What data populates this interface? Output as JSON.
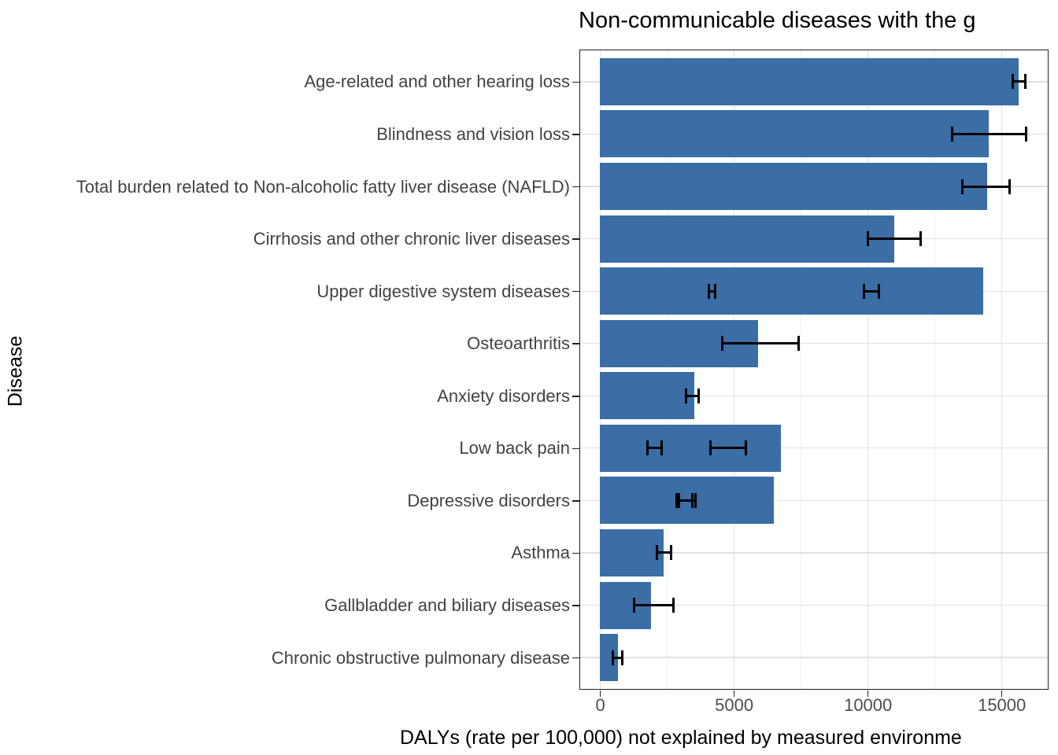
{
  "title": "Non-communicable diseases with the g",
  "axes": {
    "x_label": "DALYs (rate per 100,000) not explained by measured environme",
    "y_label": "Disease"
  },
  "colors": {
    "bar_fill": "#3A6EA5",
    "panel_border": "#1F1F1F",
    "grid_major": "#E0E0E0",
    "grid_minor": "#F0F0F0",
    "axis_text": "#424242",
    "error_bar": "#000000",
    "background": "#FFFFFF"
  },
  "chart_data": {
    "type": "bar",
    "orientation": "horizontal",
    "title": "Non-communicable diseases with the g",
    "xlabel": "DALYs (rate per 100,000) not explained by measured environme",
    "ylabel": "Disease",
    "xlim": [
      -740,
      16730
    ],
    "x_major_ticks": [
      0,
      5000,
      10000,
      15000
    ],
    "x_tick_labels": [
      "0",
      "5000",
      "10000",
      "15000"
    ],
    "x_minor_gridlines": [
      2500,
      7500,
      12500
    ],
    "grid": true,
    "legend": false,
    "bar_width_fraction": 0.9,
    "rows": [
      {
        "label": "Age-related and other hearing loss",
        "value": 15650,
        "errors": [
          [
            15410,
            15900
          ]
        ]
      },
      {
        "label": "Blindness and vision loss",
        "value": 14530,
        "errors": [
          [
            13150,
            15910
          ]
        ]
      },
      {
        "label": "Total burden related to Non-alcoholic fatty liver disease (NAFLD)",
        "value": 14470,
        "errors": [
          [
            13530,
            15290
          ]
        ]
      },
      {
        "label": "Cirrhosis and other chronic liver diseases",
        "value": 11000,
        "errors": [
          [
            10000,
            11970
          ]
        ]
      },
      {
        "label": "Upper digestive system diseases",
        "value": 14320,
        "errors": [
          [
            4060,
            4290
          ],
          [
            9850,
            10410
          ]
        ]
      },
      {
        "label": "Osteoarthritis",
        "value": 5910,
        "errors": [
          [
            4560,
            7410
          ]
        ]
      },
      {
        "label": "Anxiety disorders",
        "value": 3530,
        "errors": [
          [
            3210,
            3680
          ]
        ]
      },
      {
        "label": "Low back pain",
        "value": 6760,
        "errors": [
          [
            1760,
            2300
          ],
          [
            4120,
            5440
          ]
        ]
      },
      {
        "label": "Depressive disorders",
        "value": 6500,
        "errors": [
          [
            2850,
            3450
          ],
          [
            2960,
            3560
          ]
        ]
      },
      {
        "label": "Asthma",
        "value": 2380,
        "errors": [
          [
            2120,
            2650
          ]
        ]
      },
      {
        "label": "Gallbladder and biliary diseases",
        "value": 1910,
        "errors": [
          [
            1270,
            2740
          ]
        ]
      },
      {
        "label": "Chronic obstructive pulmonary disease",
        "value": 680,
        "errors": [
          [
            470,
            820
          ]
        ]
      }
    ]
  }
}
